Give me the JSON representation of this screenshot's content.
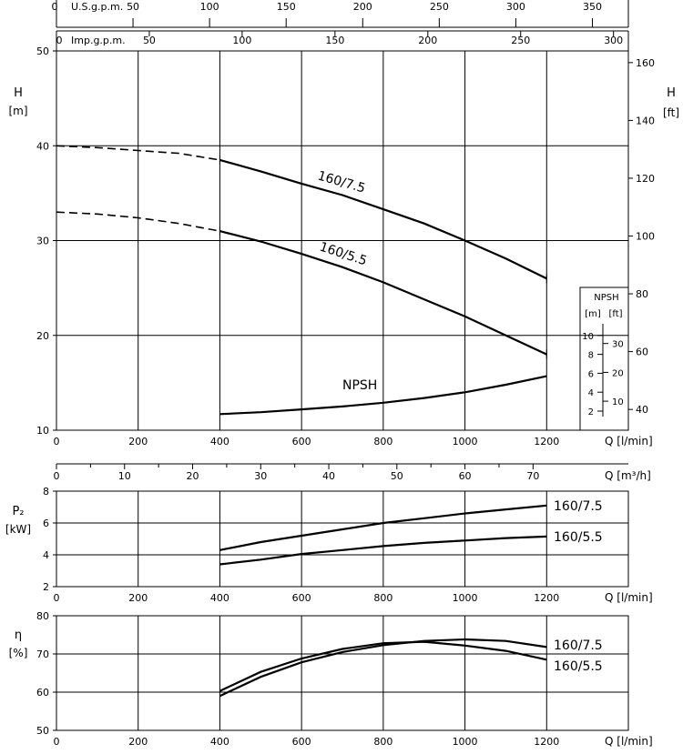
{
  "chart_data": [
    {
      "id": "head",
      "type": "line",
      "top_axes": {
        "us_gpm": {
          "label": "U.S.g.p.m.",
          "ticks": [
            "0",
            "50",
            "100",
            "150",
            "200",
            "250",
            "300",
            "350"
          ],
          "max": 350,
          "zero_label": "0"
        },
        "imp_gpm": {
          "label": "Imp.g.p.m.",
          "ticks": [
            "0",
            "50",
            "100",
            "150",
            "200",
            "250",
            "300"
          ],
          "max": 300
        }
      },
      "xlabel": "Q [l/min]",
      "xlim": [
        0,
        1400
      ],
      "xticks": [
        "0",
        "200",
        "400",
        "600",
        "800",
        "1000",
        "1200"
      ],
      "ylabel": [
        "H",
        "[m]"
      ],
      "ylim": [
        10,
        50
      ],
      "yticks": [
        "10",
        "20",
        "30",
        "40",
        "50"
      ],
      "y2label": [
        "H",
        "[ft]"
      ],
      "y2ticks": [
        "40",
        "60",
        "80",
        "100",
        "120",
        "140",
        "160"
      ],
      "grid": true,
      "series": [
        {
          "name": "160/7.5",
          "x": [
            0,
            100,
            200,
            300,
            400,
            500,
            600,
            700,
            800,
            900,
            1000,
            1100,
            1200
          ],
          "y": [
            40.0,
            39.8,
            39.5,
            39.2,
            38.5,
            37.3,
            36.0,
            34.8,
            33.3,
            31.8,
            30.0,
            28.1,
            26.0
          ],
          "dashed_until": 400
        },
        {
          "name": "160/5.5",
          "x": [
            0,
            100,
            200,
            300,
            400,
            500,
            600,
            700,
            800,
            900,
            1000,
            1100,
            1200
          ],
          "y": [
            33.0,
            32.8,
            32.4,
            31.8,
            31.0,
            29.9,
            28.6,
            27.2,
            25.6,
            23.8,
            22.0,
            20.0,
            18.0
          ],
          "dashed_until": 400
        },
        {
          "name": "NPSH",
          "x": [
            400,
            500,
            600,
            700,
            800,
            900,
            1000,
            1100,
            1200
          ],
          "y": [
            11.7,
            11.9,
            12.2,
            12.5,
            12.9,
            13.4,
            14.0,
            14.8,
            15.7
          ]
        }
      ],
      "npsh_inset": {
        "title": "NPSH",
        "units": [
          "[m]",
          "[ft]"
        ],
        "m_ticks": [
          "2",
          "4",
          "6",
          "8",
          "10"
        ],
        "ft_ticks": [
          "10",
          "20",
          "30"
        ]
      },
      "m3h_axis": {
        "label": "Q [m³/h]",
        "ticks": [
          "0",
          "10",
          "20",
          "30",
          "40",
          "50",
          "60",
          "70"
        ],
        "max": 84
      }
    },
    {
      "id": "power",
      "type": "line",
      "xlabel": "Q [l/min]",
      "xlim": [
        0,
        1400
      ],
      "xticks": [
        "0",
        "200",
        "400",
        "600",
        "800",
        "1000",
        "1200"
      ],
      "ylabel": [
        "P₂",
        "[kW]"
      ],
      "ylim": [
        2,
        8
      ],
      "yticks": [
        "2",
        "4",
        "6",
        "8"
      ],
      "grid": true,
      "series": [
        {
          "name": "160/7.5",
          "x": [
            400,
            500,
            600,
            700,
            800,
            900,
            1000,
            1100,
            1200
          ],
          "y": [
            4.3,
            4.8,
            5.2,
            5.6,
            6.0,
            6.3,
            6.6,
            6.85,
            7.1
          ]
        },
        {
          "name": "160/5.5",
          "x": [
            400,
            500,
            600,
            700,
            800,
            900,
            1000,
            1100,
            1200
          ],
          "y": [
            3.4,
            3.7,
            4.05,
            4.3,
            4.55,
            4.75,
            4.9,
            5.05,
            5.15
          ]
        }
      ]
    },
    {
      "id": "efficiency",
      "type": "line",
      "xlabel": "Q [l/min]",
      "xlim": [
        0,
        1400
      ],
      "xticks": [
        "0",
        "200",
        "400",
        "600",
        "800",
        "1000",
        "1200"
      ],
      "ylabel": [
        "η",
        "[%]"
      ],
      "ylim": [
        50,
        80
      ],
      "yticks": [
        "50",
        "60",
        "70",
        "80"
      ],
      "grid": true,
      "series": [
        {
          "name": "160/7.5",
          "x": [
            400,
            500,
            600,
            700,
            800,
            900,
            1000,
            1100,
            1200
          ],
          "y": [
            59.0,
            64.0,
            67.8,
            70.5,
            72.3,
            73.4,
            73.8,
            73.4,
            71.8
          ]
        },
        {
          "name": "160/5.5",
          "x": [
            400,
            500,
            600,
            700,
            800,
            900,
            1000,
            1100,
            1200
          ],
          "y": [
            60.3,
            65.3,
            68.8,
            71.3,
            72.8,
            73.2,
            72.2,
            70.8,
            68.5
          ]
        }
      ]
    }
  ]
}
